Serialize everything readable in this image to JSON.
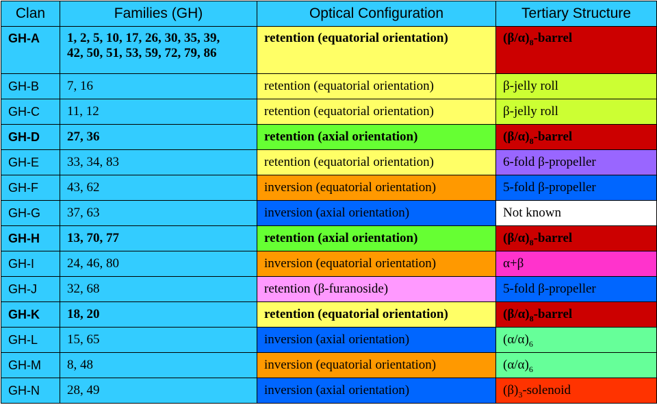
{
  "headers": {
    "clan": "Clan",
    "families": "Families (GH)",
    "optical": "Optical Configuration",
    "tertiary": "Tertiary Structure"
  },
  "rows": [
    {
      "clan": "GH-A",
      "families": "1, 2, 5, 10, 17, 26, 30, 35, 39, 42, 50, 51, 53, 59, 72, 79, 86",
      "families_line1": "1, 2, 5, 10, 17, 26, 30, 35, 39,",
      "families_line2": "42, 50, 51, 53, 59, 72, 79, 86",
      "optical": "retention (equatorial orientation)",
      "tertiary_pre": "(β/α)",
      "tertiary_sub": "8",
      "tertiary_post": "-barrel",
      "bold": true,
      "optical_color": "#ffff66",
      "tertiary_color": "#cc0000"
    },
    {
      "clan": "GH-B",
      "families": "7, 16",
      "optical": "retention (equatorial orientation)",
      "tertiary_pre": "β-jelly roll",
      "tertiary_sub": "",
      "tertiary_post": "",
      "bold": false,
      "optical_color": "#ffff66",
      "tertiary_color": "#ccff33"
    },
    {
      "clan": "GH-C",
      "families": "11, 12",
      "optical": "retention (equatorial orientation)",
      "tertiary_pre": "β-jelly roll",
      "tertiary_sub": "",
      "tertiary_post": "",
      "bold": false,
      "optical_color": "#ffff66",
      "tertiary_color": "#ccff33"
    },
    {
      "clan": "GH-D",
      "families": "27, 36",
      "optical": "retention (axial orientation)",
      "tertiary_pre": "(β/α)",
      "tertiary_sub": "8",
      "tertiary_post": "-barrel",
      "bold": true,
      "optical_color": "#66ff33",
      "tertiary_color": "#cc0000"
    },
    {
      "clan": "GH-E",
      "families": "33, 34, 83",
      "optical": "retention (equatorial orientation)",
      "tertiary_pre": "6-fold β-propeller",
      "tertiary_sub": "",
      "tertiary_post": "",
      "bold": false,
      "optical_color": "#ffff66",
      "tertiary_color": "#9966ff"
    },
    {
      "clan": "GH-F",
      "families": "43, 62",
      "optical": "inversion (equatorial orientation)",
      "tertiary_pre": "5-fold β-propeller",
      "tertiary_sub": "",
      "tertiary_post": "",
      "bold": false,
      "optical_color": "#ff9900",
      "tertiary_color": "#0066ff"
    },
    {
      "clan": "GH-G",
      "families": "37, 63",
      "optical": "inversion (axial orientation)",
      "tertiary_pre": "Not known",
      "tertiary_sub": "",
      "tertiary_post": "",
      "bold": false,
      "optical_color": "#0066ff",
      "tertiary_color": "#ffffff"
    },
    {
      "clan": "GH-H",
      "families": "13, 70, 77",
      "optical": "retention (axial orientation)",
      "tertiary_pre": "(β/α)",
      "tertiary_sub": "8",
      "tertiary_post": "-barrel",
      "bold": true,
      "optical_color": "#66ff33",
      "tertiary_color": "#cc0000"
    },
    {
      "clan": "GH-I",
      "families": "24, 46, 80",
      "optical": "inversion (equatorial orientation)",
      "tertiary_pre": "α+β",
      "tertiary_sub": "",
      "tertiary_post": "",
      "bold": false,
      "optical_color": "#ff9900",
      "tertiary_color": "#ff33cc"
    },
    {
      "clan": "GH-J",
      "families": "32, 68",
      "optical": "retention (β-furanoside)",
      "tertiary_pre": "5-fold β-propeller",
      "tertiary_sub": "",
      "tertiary_post": "",
      "bold": false,
      "optical_color": "#ff99ff",
      "tertiary_color": "#0066ff"
    },
    {
      "clan": "GH-K",
      "families": "18, 20",
      "optical": "retention (equatorial orientation)",
      "tertiary_pre": "(β/α)",
      "tertiary_sub": "8",
      "tertiary_post": "-barrel",
      "bold": true,
      "optical_color": "#ffff66",
      "tertiary_color": "#cc0000"
    },
    {
      "clan": "GH-L",
      "families": "15, 65",
      "optical": "inversion (axial orientation)",
      "tertiary_pre": "(α/α)",
      "tertiary_sub": "6",
      "tertiary_post": "",
      "bold": false,
      "optical_color": "#0066ff",
      "tertiary_color": "#66ff99"
    },
    {
      "clan": "GH-M",
      "families": "8, 48",
      "optical": "inversion (equatorial orientation)",
      "tertiary_pre": "(α/α)",
      "tertiary_sub": "6",
      "tertiary_post": "",
      "bold": false,
      "optical_color": "#ff9900",
      "tertiary_color": "#66ff99"
    },
    {
      "clan": "GH-N",
      "families": "28, 49",
      "optical": "inversion (axial orientation)",
      "tertiary_pre": "(β)",
      "tertiary_sub": "3",
      "tertiary_post": "-solenoid",
      "bold": false,
      "optical_color": "#0066ff",
      "tertiary_color": "#ff3300"
    }
  ],
  "colors": {
    "header_bg": "#33ccff",
    "clan_bg": "#33ccff",
    "families_bg": "#33ccff",
    "border": "#000000"
  }
}
